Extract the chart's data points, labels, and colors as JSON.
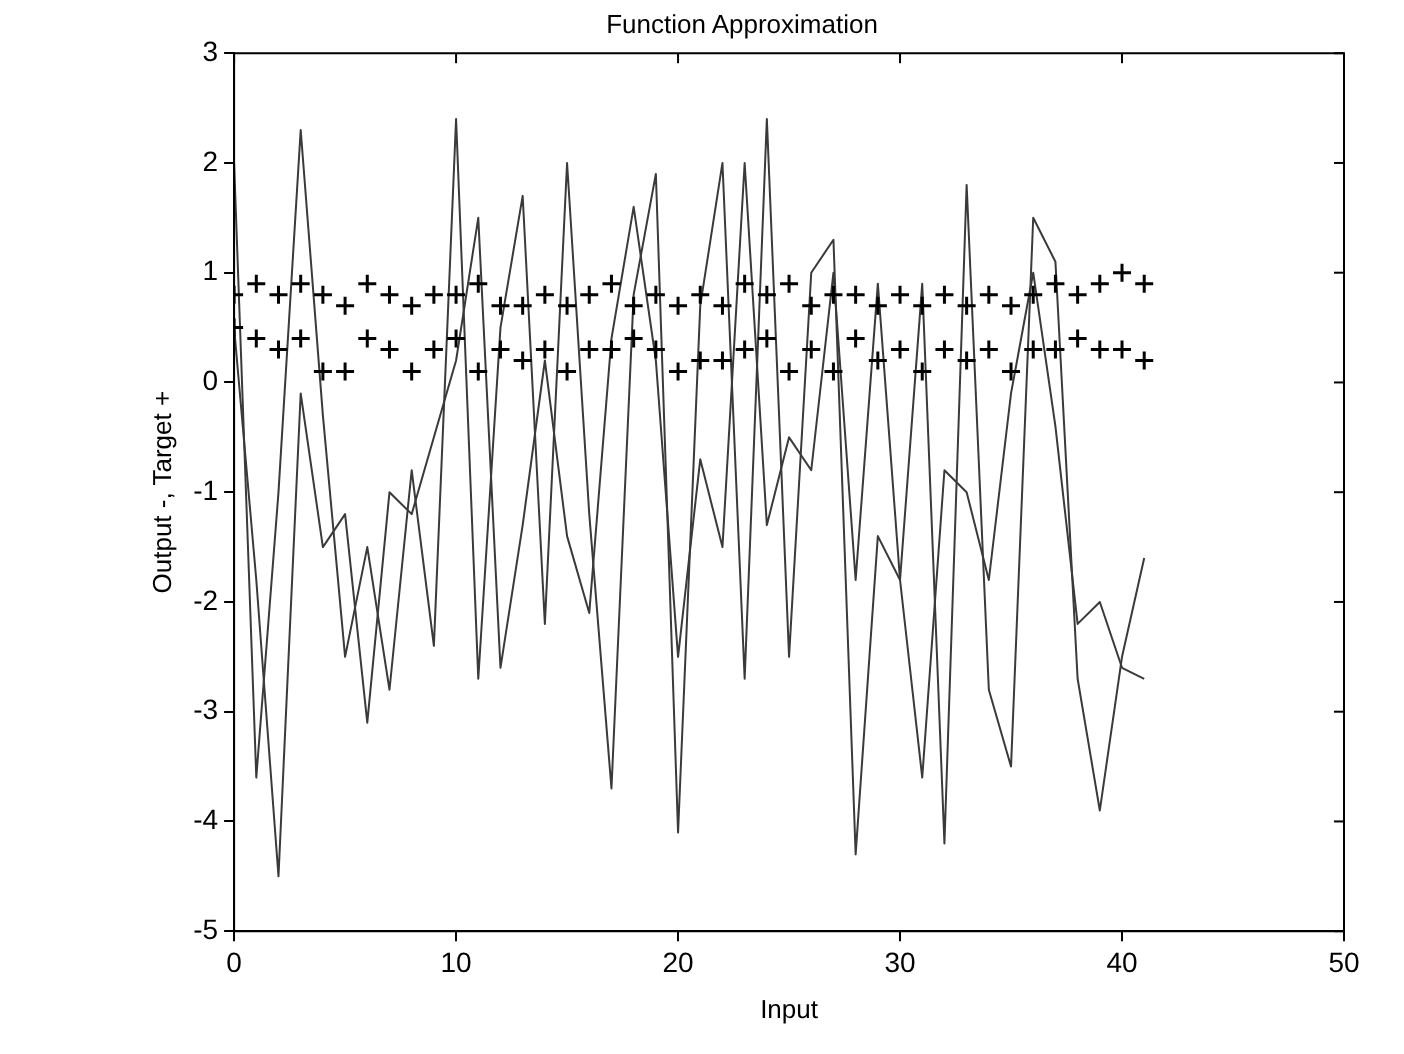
{
  "chart_data": {
    "type": "line",
    "title": "Function Approximation",
    "xlabel": "Input",
    "ylabel": "Output -, Target +",
    "x": [
      0,
      1,
      2,
      3,
      4,
      5,
      6,
      7,
      8,
      9,
      10,
      11,
      12,
      13,
      14,
      15,
      16,
      17,
      18,
      19,
      20,
      21,
      22,
      23,
      24,
      25,
      26,
      27,
      28,
      29,
      30,
      31,
      32,
      33,
      34,
      35,
      36,
      37,
      38,
      39,
      40,
      41
    ],
    "xlim": [
      0,
      50
    ],
    "xticks": [
      0,
      10,
      20,
      30,
      40,
      50
    ],
    "ylim": [
      -5,
      3
    ],
    "yticks": [
      -5,
      -4,
      -3,
      -2,
      -1,
      0,
      1,
      2,
      3
    ],
    "grid": false,
    "legend": false,
    "line_style": "solid",
    "series": [
      {
        "color": "#3a3a3a",
        "marker": "none",
        "values": [
          2.0,
          -3.6,
          -1.0,
          2.3,
          -0.3,
          -2.5,
          -1.5,
          -2.8,
          -0.8,
          -2.4,
          2.4,
          -2.7,
          0.5,
          1.7,
          -2.2,
          2.0,
          -1.2,
          -3.7,
          0.8,
          1.9,
          -4.1,
          0.7,
          2.0,
          -2.7,
          2.4,
          -2.5,
          1.0,
          1.3,
          -4.3,
          -1.4,
          -1.8,
          0.9,
          -4.2,
          1.8,
          -2.8,
          -3.5,
          1.5,
          1.1,
          -2.7,
          -3.9,
          -2.5,
          -1.6
        ]
      },
      {
        "color": "#3a3a3a",
        "marker": "none",
        "values": [
          0.5,
          -1.8,
          -4.5,
          -0.1,
          -1.5,
          -1.2,
          -3.1,
          -1.0,
          -1.2,
          -0.5,
          0.2,
          1.5,
          -2.6,
          -1.3,
          0.2,
          -1.4,
          -2.1,
          0.4,
          1.6,
          0.2,
          -2.5,
          -0.7,
          -1.5,
          2.0,
          -1.3,
          -0.5,
          -0.8,
          1.0,
          -1.8,
          0.9,
          -1.8,
          -3.6,
          -0.8,
          -1.0,
          -1.8,
          -0.1,
          1.0,
          -0.4,
          -2.2,
          -2.0,
          -2.6,
          -2.7
        ]
      },
      {
        "type": "scatter",
        "color": "#000000",
        "marker": "cross",
        "values": [
          0.8,
          0.9,
          0.8,
          0.9,
          0.8,
          0.7,
          0.9,
          0.8,
          0.7,
          0.8,
          0.8,
          0.9,
          0.7,
          0.7,
          0.8,
          0.7,
          0.8,
          0.9,
          0.7,
          0.8,
          0.7,
          0.8,
          0.7,
          0.9,
          0.8,
          0.9,
          0.7,
          0.8,
          0.8,
          0.7,
          0.8,
          0.7,
          0.8,
          0.7,
          0.8,
          0.7,
          0.8,
          0.9,
          0.8,
          0.9,
          1.0,
          0.9
        ]
      },
      {
        "type": "scatter",
        "color": "#000000",
        "marker": "cross",
        "values": [
          0.5,
          0.4,
          0.3,
          0.4,
          0.1,
          0.1,
          0.4,
          0.3,
          0.1,
          0.3,
          0.4,
          0.1,
          0.3,
          0.2,
          0.3,
          0.1,
          0.3,
          0.3,
          0.4,
          0.3,
          0.1,
          0.2,
          0.2,
          0.3,
          0.4,
          0.1,
          0.3,
          0.1,
          0.4,
          0.2,
          0.3,
          0.1,
          0.3,
          0.2,
          0.3,
          0.1,
          0.3,
          0.3,
          0.4,
          0.3,
          0.3,
          0.2
        ]
      }
    ]
  }
}
